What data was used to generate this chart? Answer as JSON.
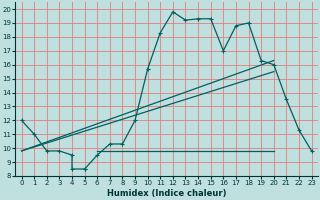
{
  "title": "",
  "xlabel": "Humidex (Indice chaleur)",
  "xlim": [
    -0.5,
    23.5
  ],
  "ylim": [
    8,
    20.5
  ],
  "xticks": [
    0,
    1,
    2,
    3,
    4,
    5,
    6,
    7,
    8,
    9,
    10,
    11,
    12,
    13,
    14,
    15,
    16,
    17,
    18,
    19,
    20,
    21,
    22,
    23
  ],
  "yticks": [
    8,
    9,
    10,
    11,
    12,
    13,
    14,
    15,
    16,
    17,
    18,
    19,
    20
  ],
  "bg_color": "#c0e0e0",
  "line_color": "#006060",
  "grid_color": "#e08080",
  "line1_x": [
    0,
    1,
    2,
    3,
    4,
    4,
    5,
    5,
    6,
    7,
    8,
    9,
    10,
    11,
    12,
    13,
    14,
    15,
    16,
    17,
    18,
    19,
    20,
    21,
    22,
    23
  ],
  "line1_y": [
    12,
    11,
    9.8,
    9.8,
    9.5,
    8.5,
    8.5,
    8.5,
    9.5,
    10.3,
    10.3,
    12,
    15.7,
    18.3,
    19.8,
    19.2,
    19.3,
    19.3,
    17.0,
    18.8,
    19.0,
    16.3,
    16.0,
    13.5,
    11.3,
    9.8
  ],
  "line2_x": [
    0,
    20
  ],
  "line2_y": [
    9.8,
    15.5
  ],
  "line3_x": [
    0,
    20
  ],
  "line3_y": [
    9.8,
    16.3
  ],
  "line4_x": [
    6,
    20
  ],
  "line4_y": [
    9.8,
    9.8
  ]
}
